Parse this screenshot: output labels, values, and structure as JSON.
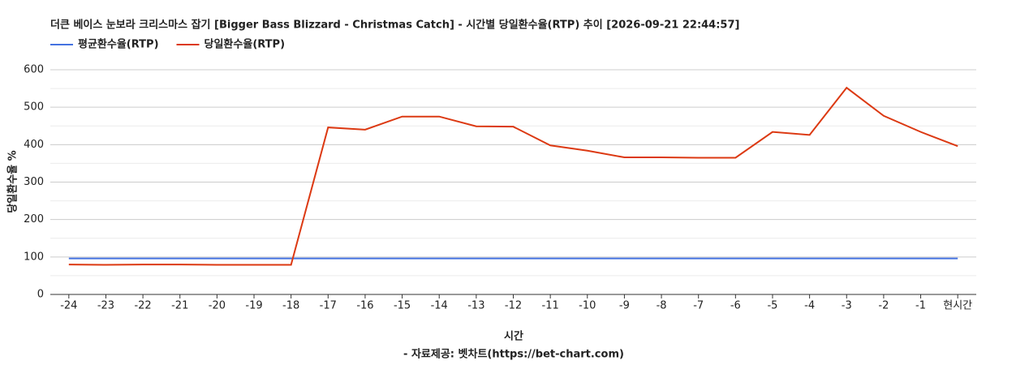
{
  "chart_data": {
    "type": "line",
    "title": "더큰 베이스 눈보라 크리스마스 잡기 [Bigger Bass Blizzard - Christmas Catch] - 시간별 당일환수율(RTP) 추이 [2026-09-21 22:44:57]",
    "x_label": "시간",
    "y_label": "당일환수율 %",
    "source": "- 자료제공: 벳차트(https://bet-chart.com)",
    "categories": [
      "-24",
      "-23",
      "-22",
      "-21",
      "-20",
      "-19",
      "-18",
      "-17",
      "-16",
      "-15",
      "-14",
      "-13",
      "-12",
      "-11",
      "-10",
      "-9",
      "-8",
      "-7",
      "-6",
      "-5",
      "-4",
      "-3",
      "-2",
      "-1",
      "현시간"
    ],
    "series": [
      {
        "name": "평균환수율(RTP)",
        "color": "#4472e0",
        "values": [
          96,
          96,
          96,
          96,
          96,
          96,
          96,
          96,
          96,
          96,
          96,
          96,
          96,
          96,
          96,
          96,
          96,
          96,
          96,
          96,
          96,
          96,
          96,
          96,
          96
        ]
      },
      {
        "name": "당일환수율(RTP)",
        "color": "#dc3912",
        "values": [
          80,
          79,
          80,
          80,
          79,
          79,
          79,
          446,
          440,
          475,
          475,
          449,
          448,
          398,
          384,
          366,
          366,
          365,
          365,
          434,
          426,
          552,
          477,
          434,
          396
        ]
      }
    ],
    "ylim": [
      0,
      600
    ],
    "yticks": [
      0,
      100,
      200,
      300,
      400,
      500,
      600
    ],
    "grid": true,
    "legend": "top-left"
  }
}
